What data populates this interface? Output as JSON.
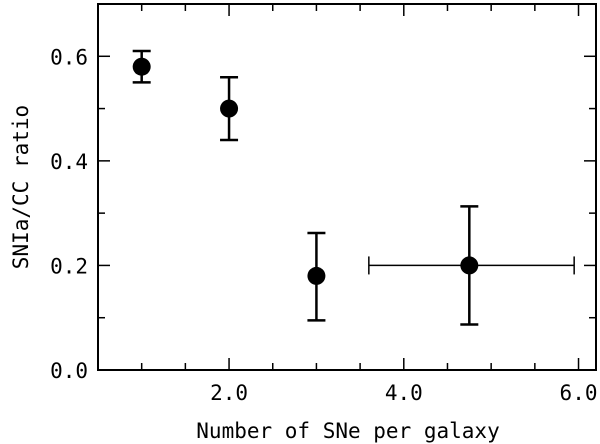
{
  "chart_data": {
    "type": "scatter",
    "xlabel": "Number of SNe per galaxy",
    "ylabel": "SNIa/CC ratio",
    "xlim": [
      0.5,
      6.2
    ],
    "ylim": [
      0.0,
      0.7
    ],
    "x_ticks": [
      {
        "value": 2.0,
        "label": "2.0"
      },
      {
        "value": 4.0,
        "label": "4.0"
      },
      {
        "value": 6.0,
        "label": "6.0"
      }
    ],
    "y_ticks": [
      {
        "value": 0.0,
        "label": "0.0"
      },
      {
        "value": 0.2,
        "label": "0.2"
      },
      {
        "value": 0.4,
        "label": "0.4"
      },
      {
        "value": 0.6,
        "label": "0.6"
      }
    ],
    "x_minor_step": 0.5,
    "y_minor_step": 0.1,
    "series": [
      {
        "points": [
          {
            "x": 1.0,
            "y": 0.58,
            "y_lo": 0.55,
            "y_hi": 0.61
          },
          {
            "x": 2.0,
            "y": 0.5,
            "y_lo": 0.44,
            "y_hi": 0.56
          },
          {
            "x": 3.0,
            "y": 0.18,
            "y_lo": 0.095,
            "y_hi": 0.262
          },
          {
            "x": 4.75,
            "y": 0.2,
            "y_lo": 0.087,
            "y_hi": 0.313,
            "x_lo": 3.6,
            "x_hi": 5.95
          }
        ]
      }
    ],
    "marker": "filled-circle",
    "color": "#000000",
    "grid": false
  }
}
